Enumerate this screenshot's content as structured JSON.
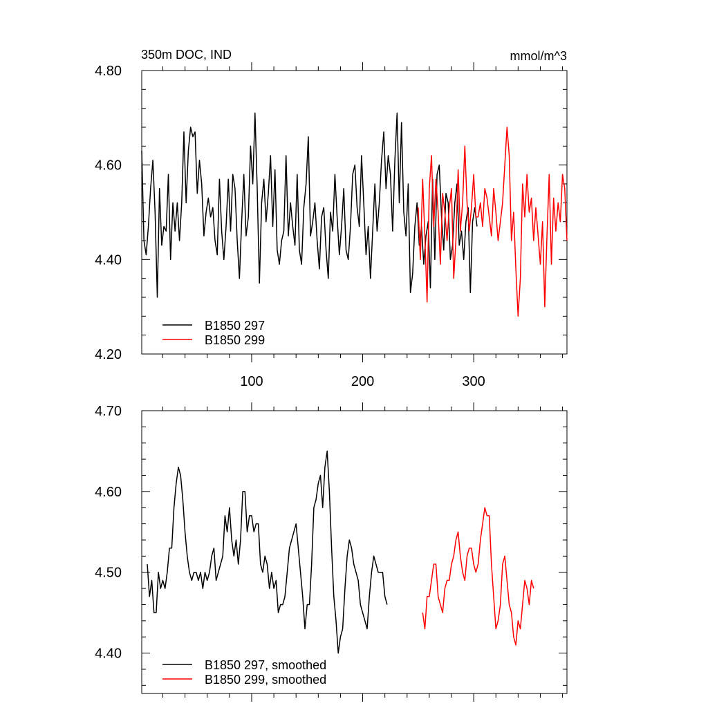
{
  "chart_data": [
    {
      "type": "line",
      "title": "350m DOC, IND",
      "units": "mmol/m^3",
      "xlim": [
        1,
        384
      ],
      "ylim": [
        4.2,
        4.8
      ],
      "x_ticks": [
        "100",
        "200",
        "300"
      ],
      "y_ticks": [
        "4.20",
        "4.40",
        "4.60",
        "4.80"
      ],
      "grid": false,
      "legend_position": "bottom-left",
      "series": [
        {
          "name": "B1850 297",
          "color": "#000000",
          "x_start": 1,
          "x_step": 2,
          "values": [
            4.63,
            4.44,
            4.41,
            4.47,
            4.55,
            4.61,
            4.5,
            4.32,
            4.55,
            4.43,
            4.47,
            4.46,
            4.58,
            4.4,
            4.52,
            4.46,
            4.52,
            4.44,
            4.52,
            4.67,
            4.52,
            4.63,
            4.68,
            4.66,
            4.67,
            4.54,
            4.61,
            4.56,
            4.45,
            4.5,
            4.53,
            4.49,
            4.51,
            4.44,
            4.41,
            4.57,
            4.46,
            4.4,
            4.47,
            4.57,
            4.46,
            4.58,
            4.55,
            4.44,
            4.36,
            4.48,
            4.58,
            4.45,
            4.49,
            4.64,
            4.56,
            4.71,
            4.55,
            4.35,
            4.52,
            4.57,
            4.48,
            4.54,
            4.62,
            4.47,
            4.59,
            4.42,
            4.39,
            4.44,
            4.46,
            4.62,
            4.45,
            4.52,
            4.47,
            4.43,
            4.58,
            4.42,
            4.39,
            4.51,
            4.56,
            4.66,
            4.45,
            4.48,
            4.52,
            4.44,
            4.38,
            4.49,
            4.51,
            4.42,
            4.36,
            4.5,
            4.46,
            4.58,
            4.49,
            4.41,
            4.47,
            4.55,
            4.42,
            4.4,
            4.47,
            4.58,
            4.6,
            4.51,
            4.47,
            4.62,
            4.52,
            4.41,
            4.47,
            4.36,
            4.46,
            4.56,
            4.46,
            4.52,
            4.61,
            4.67,
            4.55,
            4.62,
            4.58,
            4.46,
            4.61,
            4.71,
            4.52,
            4.69,
            4.5,
            4.45,
            4.56,
            4.33,
            4.37,
            4.47,
            4.52,
            4.43,
            4.47,
            4.39,
            4.45,
            4.48,
            4.34,
            4.57,
            4.4,
            4.58,
            4.6,
            4.49,
            4.42,
            4.54,
            4.52,
            4.4,
            4.43,
            4.52,
            4.56,
            4.43,
            4.46,
            4.4,
            4.48,
            4.51,
            4.33,
            4.48,
            4.51,
            4.47
          ]
        },
        {
          "name": "B1850 299",
          "color": "#ff0000",
          "x_start": 250,
          "x_step": 2,
          "values": [
            4.51,
            4.4,
            4.57,
            4.45,
            4.31,
            4.55,
            4.62,
            4.47,
            4.57,
            4.5,
            4.39,
            4.54,
            4.5,
            4.44,
            4.51,
            4.55,
            4.36,
            4.44,
            4.59,
            4.46,
            4.52,
            4.64,
            4.52,
            4.46,
            4.51,
            4.58,
            4.49,
            4.49,
            4.52,
            4.47,
            4.55,
            4.53,
            4.49,
            4.45,
            4.55,
            4.5,
            4.44,
            4.48,
            4.52,
            4.6,
            4.68,
            4.62,
            4.44,
            4.5,
            4.38,
            4.28,
            4.36,
            4.56,
            4.49,
            4.58,
            4.5,
            4.53,
            4.44,
            4.51,
            4.45,
            4.39,
            4.48,
            4.3,
            4.45,
            4.58,
            4.39,
            4.53,
            4.46,
            4.52,
            4.48,
            4.58,
            4.55,
            4.44
          ]
        }
      ]
    },
    {
      "type": "line",
      "xlim": [
        1,
        384
      ],
      "ylim": [
        4.35,
        4.7
      ],
      "x_ticks": [],
      "y_ticks": [
        "4.40",
        "4.50",
        "4.60",
        "4.70"
      ],
      "grid": false,
      "legend_position": "bottom-left",
      "series": [
        {
          "name": "B1850 297, smoothed",
          "color": "#000000",
          "x_start": 6,
          "x_step": 2,
          "values": [
            4.51,
            4.47,
            4.49,
            4.45,
            4.45,
            4.5,
            4.48,
            4.49,
            4.48,
            4.5,
            4.53,
            4.53,
            4.58,
            4.61,
            4.63,
            4.62,
            4.59,
            4.55,
            4.52,
            4.5,
            4.49,
            4.5,
            4.5,
            4.49,
            4.5,
            4.48,
            4.5,
            4.49,
            4.5,
            4.52,
            4.53,
            4.49,
            4.5,
            4.51,
            4.52,
            4.57,
            4.55,
            4.58,
            4.54,
            4.52,
            4.54,
            4.51,
            4.54,
            4.6,
            4.6,
            4.55,
            4.57,
            4.57,
            4.55,
            4.56,
            4.56,
            4.51,
            4.5,
            4.52,
            4.51,
            4.48,
            4.5,
            4.48,
            4.49,
            4.45,
            4.46,
            4.46,
            4.47,
            4.5,
            4.53,
            4.54,
            4.55,
            4.56,
            4.53,
            4.5,
            4.47,
            4.43,
            4.46,
            4.46,
            4.51,
            4.58,
            4.59,
            4.61,
            4.62,
            4.58,
            4.63,
            4.65,
            4.6,
            4.53,
            4.47,
            4.44,
            4.4,
            4.42,
            4.43,
            4.48,
            4.52,
            4.54,
            4.53,
            4.51,
            4.5,
            4.49,
            4.46,
            4.45,
            4.44,
            4.43,
            4.47,
            4.5,
            4.52,
            4.51,
            4.5,
            4.5,
            4.5,
            4.47,
            4.46
          ]
        },
        {
          "name": "B1850 299, smoothed",
          "color": "#ff0000",
          "x_start": 254,
          "x_step": 2,
          "values": [
            4.45,
            4.43,
            4.47,
            4.47,
            4.49,
            4.51,
            4.51,
            4.47,
            4.46,
            4.45,
            4.48,
            4.49,
            4.49,
            4.51,
            4.52,
            4.54,
            4.55,
            4.52,
            4.5,
            4.49,
            4.52,
            4.53,
            4.53,
            4.51,
            4.5,
            4.51,
            4.54,
            4.56,
            4.58,
            4.57,
            4.57,
            4.51,
            4.47,
            4.43,
            4.44,
            4.46,
            4.51,
            4.52,
            4.49,
            4.46,
            4.45,
            4.42,
            4.41,
            4.44,
            4.43,
            4.46,
            4.49,
            4.48,
            4.46,
            4.49,
            4.48
          ]
        }
      ]
    }
  ]
}
